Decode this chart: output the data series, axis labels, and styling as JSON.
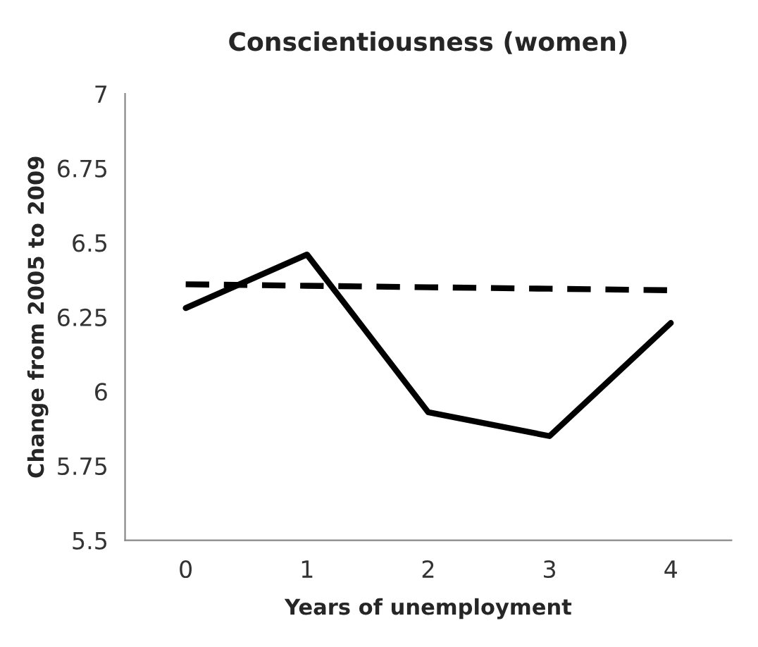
{
  "chart_data": {
    "type": "line",
    "title": "Conscientiousness (women)",
    "xlabel": "Years of unemployment",
    "ylabel": "Change from 2005 to 2009",
    "categories": [
      "0",
      "1",
      "2",
      "3",
      "4"
    ],
    "series": [
      {
        "color": "#000000",
        "line_style": "solid",
        "values": [
          6.28,
          6.46,
          5.93,
          5.85,
          6.23
        ]
      },
      {
        "color": "#000000",
        "line_style": "dashed",
        "values": [
          6.36,
          6.355,
          6.35,
          6.345,
          6.34
        ]
      }
    ],
    "ylim": [
      5.5,
      7
    ],
    "yticks": [
      5.5,
      5.75,
      6,
      6.25,
      6.5,
      6.75,
      7
    ],
    "grid": false,
    "legend": false,
    "marker": "none"
  }
}
